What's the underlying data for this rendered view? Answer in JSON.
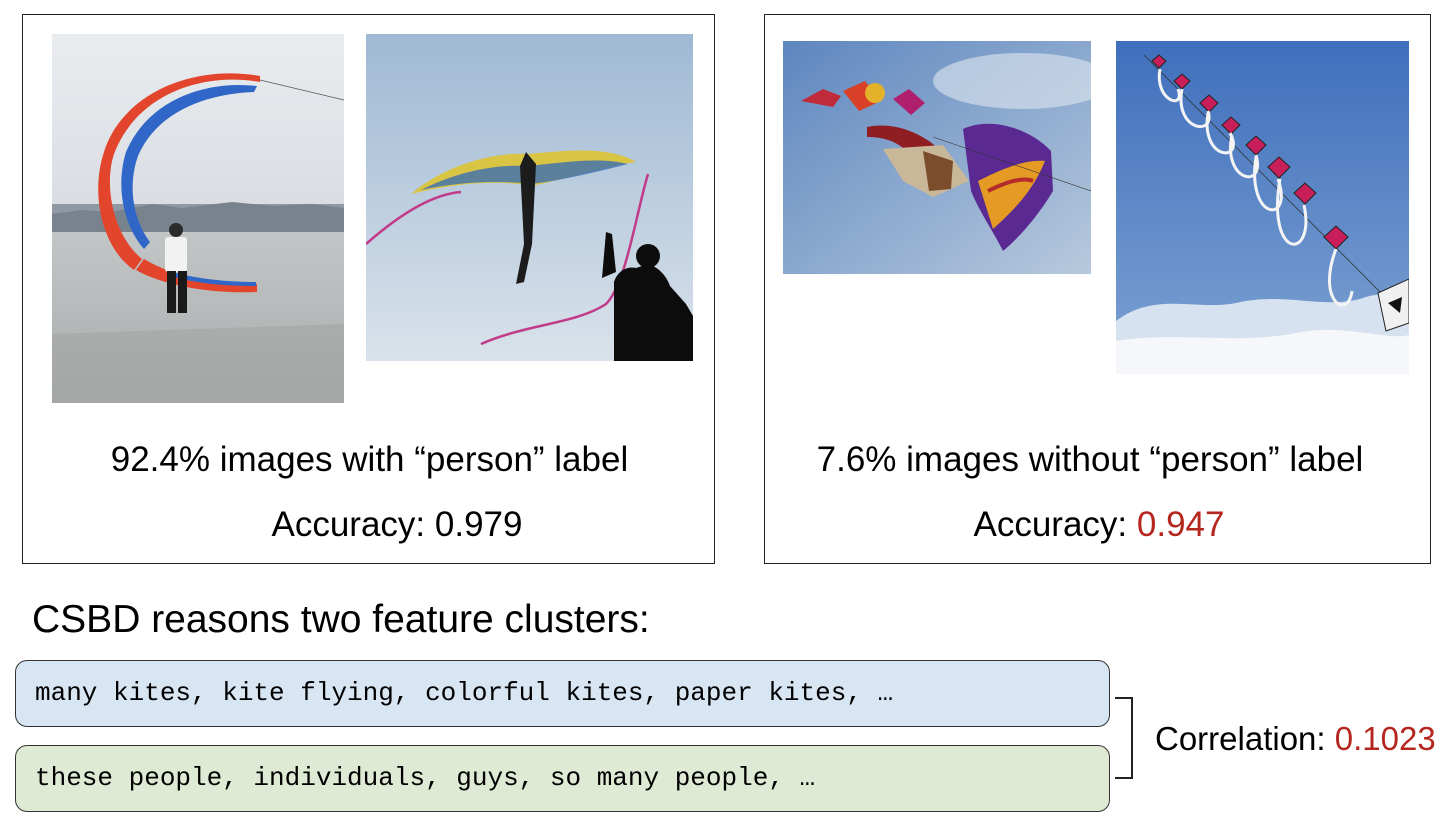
{
  "left_panel": {
    "caption": "92.4% images with “person” label",
    "accuracy_label": "Accuracy: ",
    "accuracy_value": "0.979"
  },
  "right_panel": {
    "caption": "7.6% images without “person” label",
    "accuracy_label": "Accuracy: ",
    "accuracy_value": "0.947"
  },
  "reasons_heading": "CSBD reasons two feature clusters:",
  "clusters": [
    {
      "text": "many kites, kite flying, colorful kites, paper kites, …",
      "color": "#d8e5f3"
    },
    {
      "text": "these people, individuals, guys, so many people, …",
      "color": "#dfead4"
    }
  ],
  "correlation": {
    "label": "Correlation: ",
    "value": "0.1023"
  },
  "colors": {
    "highlight": "#b5261e",
    "border": "#222222"
  }
}
